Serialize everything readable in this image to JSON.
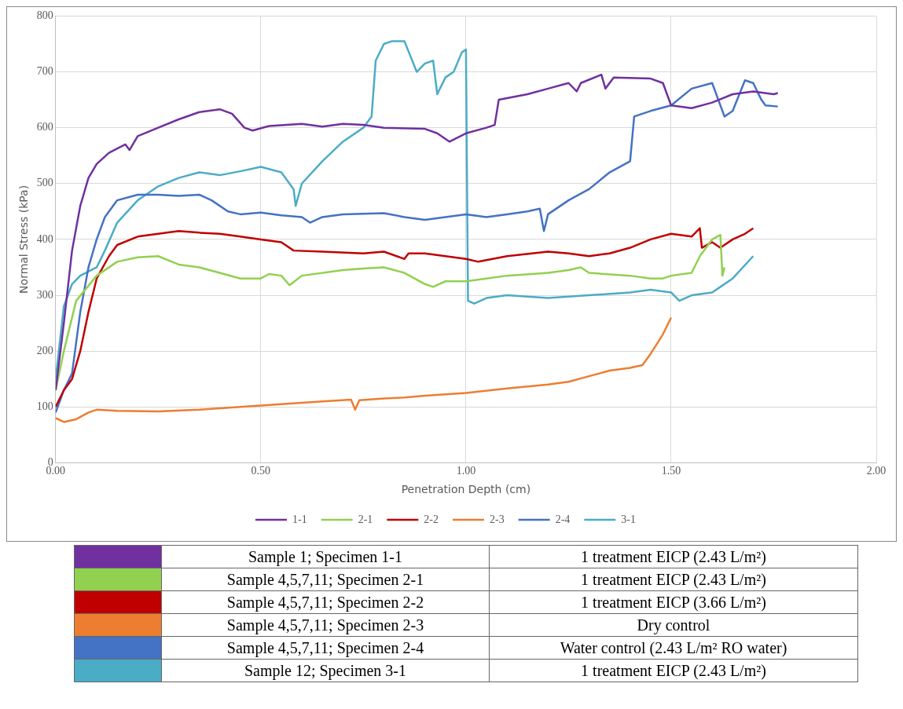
{
  "chart_data": {
    "type": "line",
    "xlabel": "Penetration Depth (cm)",
    "ylabel": "Normal Stress (kPa)",
    "xlim": [
      0,
      2
    ],
    "xticks": [
      {
        "value": 0,
        "label": "0.00"
      },
      {
        "value": 0.5,
        "label": "0.50"
      },
      {
        "value": 1,
        "label": "1.00"
      },
      {
        "value": 1.5,
        "label": "1.50"
      },
      {
        "value": 2,
        "label": "2.00"
      }
    ],
    "ylim": [
      0,
      800
    ],
    "yticks": [
      0,
      100,
      200,
      300,
      400,
      500,
      600,
      700,
      800
    ],
    "grid": true,
    "legend": "bottom",
    "marker": "none",
    "line_style": "solid",
    "series": [
      {
        "name": "1-1",
        "color": "#7030a0",
        "x": [
          0,
          0.02,
          0.04,
          0.06,
          0.08,
          0.1,
          0.13,
          0.17,
          0.18,
          0.2,
          0.25,
          0.3,
          0.35,
          0.4,
          0.43,
          0.46,
          0.48,
          0.52,
          0.6,
          0.65,
          0.7,
          0.75,
          0.8,
          0.9,
          0.93,
          0.96,
          1,
          1.05,
          1.07,
          1.08,
          1.15,
          1.2,
          1.25,
          1.27,
          1.28,
          1.33,
          1.34,
          1.36,
          1.45,
          1.48,
          1.5,
          1.55,
          1.6,
          1.65,
          1.7,
          1.75,
          1.76
        ],
        "values": [
          130,
          250,
          380,
          460,
          510,
          535,
          555,
          570,
          560,
          585,
          600,
          615,
          628,
          633,
          625,
          600,
          595,
          603,
          607,
          602,
          607,
          605,
          600,
          598,
          590,
          575,
          590,
          600,
          605,
          650,
          660,
          670,
          680,
          665,
          680,
          695,
          670,
          690,
          688,
          680,
          640,
          635,
          645,
          660,
          665,
          660,
          662
        ]
      },
      {
        "name": "2-1",
        "color": "#92d050",
        "x": [
          0,
          0.02,
          0.05,
          0.1,
          0.15,
          0.2,
          0.25,
          0.3,
          0.35,
          0.4,
          0.45,
          0.5,
          0.52,
          0.55,
          0.57,
          0.6,
          0.7,
          0.75,
          0.8,
          0.85,
          0.9,
          0.92,
          0.95,
          1,
          1.05,
          1.1,
          1.2,
          1.25,
          1.28,
          1.3,
          1.4,
          1.45,
          1.48,
          1.5,
          1.55,
          1.57,
          1.6,
          1.62,
          1.625,
          1.63
        ],
        "values": [
          130,
          200,
          290,
          335,
          360,
          368,
          370,
          355,
          350,
          340,
          330,
          330,
          338,
          335,
          318,
          335,
          345,
          348,
          350,
          340,
          320,
          315,
          325,
          325,
          330,
          335,
          340,
          345,
          350,
          340,
          335,
          330,
          330,
          335,
          340,
          370,
          400,
          408,
          335,
          350
        ]
      },
      {
        "name": "2-2",
        "color": "#c00000",
        "x": [
          0,
          0.02,
          0.04,
          0.06,
          0.08,
          0.1,
          0.13,
          0.15,
          0.2,
          0.25,
          0.3,
          0.35,
          0.4,
          0.45,
          0.5,
          0.55,
          0.58,
          0.65,
          0.75,
          0.8,
          0.85,
          0.86,
          0.9,
          0.95,
          1,
          1.03,
          1.1,
          1.2,
          1.25,
          1.3,
          1.35,
          1.4,
          1.45,
          1.5,
          1.55,
          1.57,
          1.575,
          1.6,
          1.62,
          1.65,
          1.68,
          1.7
        ],
        "values": [
          100,
          130,
          150,
          200,
          270,
          330,
          370,
          390,
          405,
          410,
          415,
          412,
          410,
          405,
          400,
          395,
          380,
          378,
          375,
          378,
          365,
          375,
          375,
          370,
          365,
          360,
          370,
          378,
          375,
          370,
          375,
          385,
          400,
          410,
          405,
          420,
          385,
          395,
          385,
          400,
          410,
          420
        ]
      },
      {
        "name": "2-3",
        "color": "#ed7d31",
        "x": [
          0,
          0.02,
          0.05,
          0.08,
          0.1,
          0.15,
          0.25,
          0.35,
          0.45,
          0.55,
          0.65,
          0.72,
          0.73,
          0.74,
          0.8,
          0.85,
          0.9,
          1,
          1.1,
          1.2,
          1.25,
          1.3,
          1.35,
          1.4,
          1.43,
          1.45,
          1.48,
          1.5
        ],
        "values": [
          80,
          73,
          78,
          90,
          95,
          93,
          92,
          95,
          100,
          105,
          110,
          113,
          95,
          112,
          115,
          117,
          120,
          125,
          133,
          140,
          145,
          155,
          165,
          170,
          175,
          195,
          230,
          260
        ]
      },
      {
        "name": "2-4",
        "color": "#4472c4",
        "x": [
          0,
          0.02,
          0.04,
          0.06,
          0.08,
          0.1,
          0.12,
          0.15,
          0.2,
          0.25,
          0.3,
          0.35,
          0.38,
          0.42,
          0.45,
          0.5,
          0.55,
          0.6,
          0.62,
          0.65,
          0.7,
          0.8,
          0.85,
          0.9,
          0.95,
          1,
          1.05,
          1.1,
          1.15,
          1.18,
          1.19,
          1.2,
          1.25,
          1.3,
          1.35,
          1.4,
          1.41,
          1.45,
          1.5,
          1.55,
          1.6,
          1.63,
          1.65,
          1.68,
          1.7,
          1.72,
          1.73,
          1.76
        ],
        "values": [
          90,
          130,
          160,
          270,
          350,
          400,
          440,
          470,
          480,
          480,
          478,
          480,
          470,
          450,
          445,
          448,
          443,
          440,
          430,
          440,
          445,
          447,
          440,
          435,
          440,
          445,
          440,
          445,
          450,
          455,
          415,
          445,
          470,
          490,
          520,
          540,
          620,
          630,
          640,
          670,
          680,
          620,
          630,
          685,
          680,
          650,
          640,
          638
        ]
      },
      {
        "name": "3-1",
        "color": "#4bacc6",
        "x": [
          0,
          0.02,
          0.04,
          0.06,
          0.1,
          0.12,
          0.15,
          0.2,
          0.25,
          0.3,
          0.35,
          0.4,
          0.45,
          0.5,
          0.55,
          0.58,
          0.585,
          0.6,
          0.65,
          0.7,
          0.75,
          0.76,
          0.77,
          0.78,
          0.8,
          0.82,
          0.85,
          0.88,
          0.9,
          0.92,
          0.93,
          0.95,
          0.97,
          0.99,
          1,
          1.005,
          1.02,
          1.05,
          1.1,
          1.2,
          1.3,
          1.4,
          1.45,
          1.5,
          1.52,
          1.55,
          1.6,
          1.62,
          1.65,
          1.7
        ],
        "values": [
          150,
          280,
          320,
          335,
          350,
          380,
          430,
          470,
          495,
          510,
          520,
          515,
          522,
          530,
          520,
          490,
          460,
          500,
          540,
          575,
          600,
          610,
          620,
          720,
          750,
          755,
          755,
          700,
          715,
          720,
          660,
          690,
          700,
          735,
          740,
          290,
          285,
          295,
          300,
          295,
          300,
          305,
          310,
          305,
          290,
          300,
          305,
          315,
          330,
          370
        ]
      }
    ],
    "annotations": [
      "Sample 1; Specimen 1-1",
      "1 treatment EICP (2.43 L/m²)",
      "Sample 4,5,7,11; Specimen 2-1",
      "1 treatment EICP (2.43 L/m²)",
      "Sample 4,5,7,11; Specimen 2-2",
      "1 treatment EICP (3.66 L/m²)",
      "Sample 4,5,7,11; Specimen 2-3",
      "Dry control",
      "Sample 4,5,7,11; Specimen 2-4",
      "Water control (2.43 L/m² RO water)",
      "Sample 12; Specimen 3-1",
      "1 treatment EICP (2.43 L/m²)"
    ]
  }
}
